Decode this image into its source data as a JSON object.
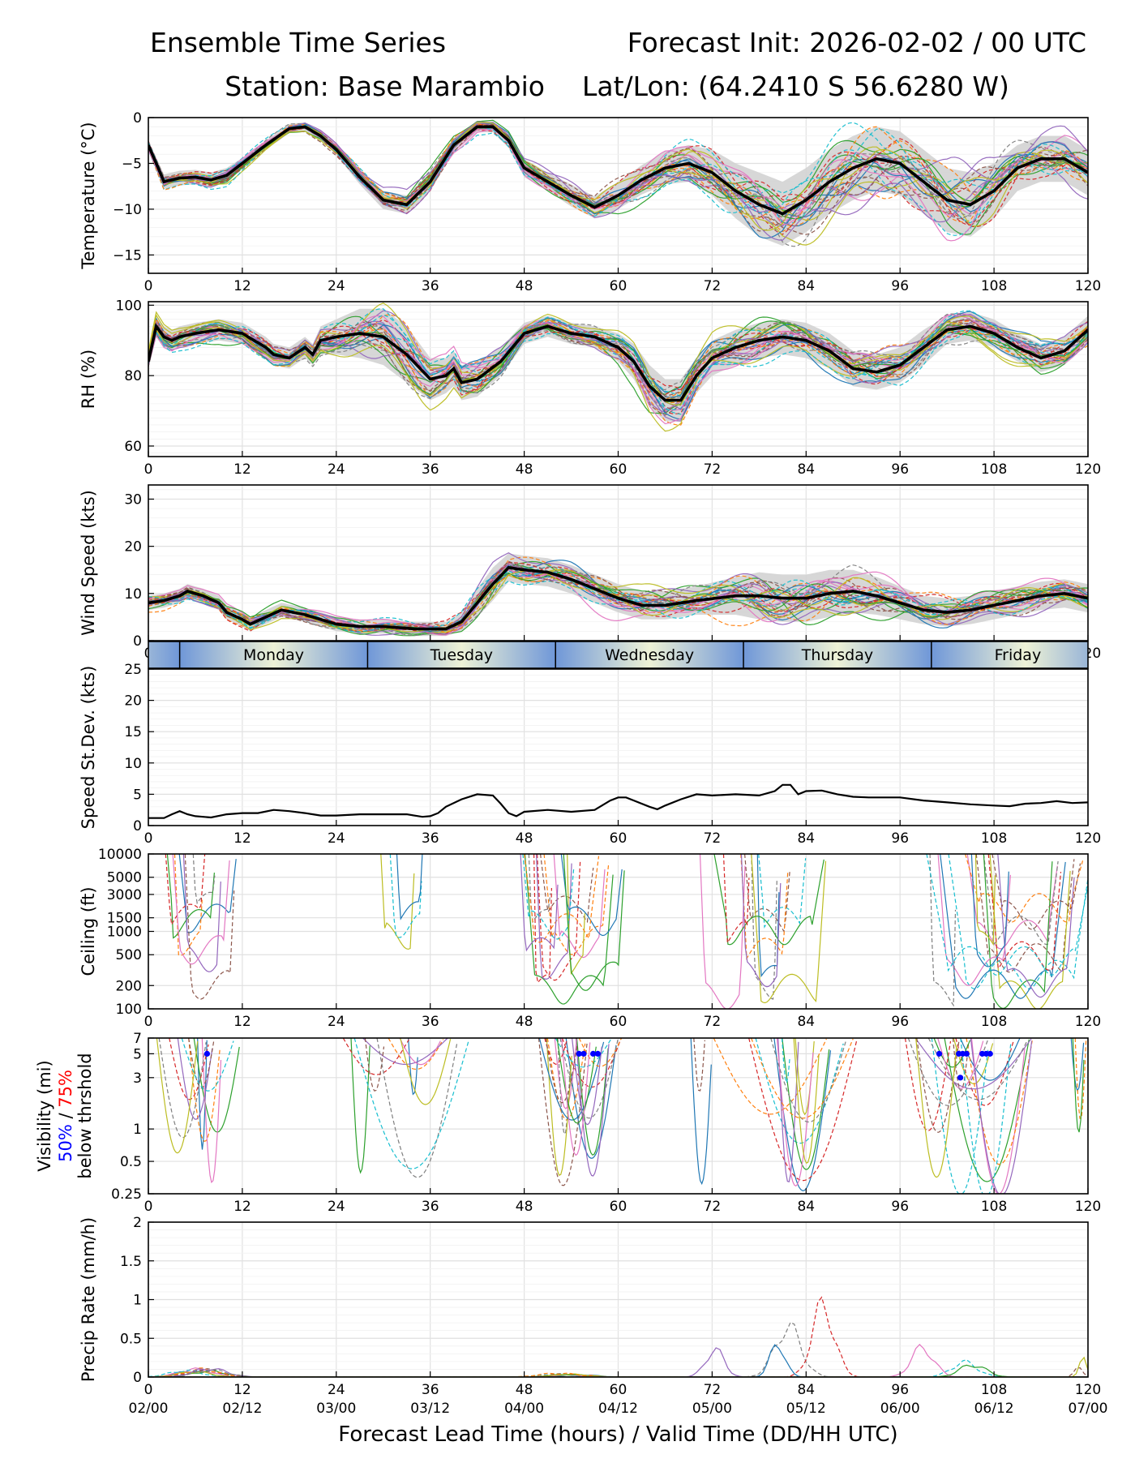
{
  "header": {
    "title_left": "Ensemble Time Series",
    "title_right": "Forecast Init: 2026-02-02 / 00 UTC",
    "station": "Station: Base Marambio",
    "latlon": "Lat/Lon: (64.2410 S 56.6280 W)"
  },
  "colors": {
    "members": [
      "#1f77b4",
      "#ff7f0e",
      "#2ca02c",
      "#d62728",
      "#9467bd",
      "#8c564b",
      "#e377c2",
      "#7f7f7f",
      "#bcbd22",
      "#17becf"
    ],
    "mean": "#000000",
    "spread": "#d0d0d0",
    "band_edge": "#6f97d8",
    "band_center": "#eef2d6",
    "vis50": "#0000ff",
    "vis75": "#ff0000"
  },
  "chart_data": [
    {
      "type": "line",
      "id": "temperature",
      "ylabel": "Temperature (°C)",
      "xlim": [
        0,
        120
      ],
      "ylim": [
        -17,
        0
      ],
      "yticks": [
        0,
        -5,
        -10,
        -15
      ],
      "xticks": [
        0,
        12,
        24,
        36,
        48,
        60,
        72,
        84,
        96,
        108,
        120
      ],
      "mean": {
        "x": [
          0,
          2,
          4,
          6,
          8,
          10,
          12,
          15,
          18,
          20,
          22,
          24,
          27,
          30,
          33,
          36,
          39,
          42,
          44,
          46,
          48,
          51,
          54,
          57,
          60,
          63,
          66,
          69,
          72,
          75,
          78,
          81,
          84,
          87,
          90,
          93,
          96,
          99,
          102,
          105,
          108,
          111,
          114,
          117,
          120
        ],
        "y": [
          -3,
          -7,
          -6.6,
          -6.5,
          -6.8,
          -6.3,
          -5,
          -3,
          -1.2,
          -1,
          -2,
          -3.5,
          -6.5,
          -9,
          -9.5,
          -7,
          -3,
          -1,
          -1,
          -2.5,
          -5.5,
          -7,
          -8.5,
          -9.8,
          -8.5,
          -6.8,
          -5.5,
          -5,
          -6,
          -8,
          -9.5,
          -10.5,
          -9,
          -7,
          -5.5,
          -4.5,
          -5,
          -7,
          -9,
          -9.5,
          -8,
          -5.5,
          -4.5,
          -4.5,
          -6
        ]
      },
      "spread_halfwidth": [
        0.5,
        0.8,
        0.8,
        0.8,
        0.8,
        0.8,
        0.6,
        0.5,
        0.5,
        0.5,
        0.5,
        0.6,
        0.8,
        1,
        1,
        1,
        0.8,
        0.6,
        0.6,
        0.8,
        1,
        1,
        1.2,
        1.2,
        1.5,
        1.6,
        1.8,
        2,
        2.5,
        3,
        3.5,
        3.5,
        3.5,
        3.5,
        3.5,
        3.5,
        3.5,
        3.5,
        3.5,
        3.5,
        3,
        2.5,
        2.5,
        2.5,
        2.5
      ],
      "members": 30
    },
    {
      "type": "line",
      "id": "rh",
      "ylabel": "RH (%)",
      "xlim": [
        0,
        120
      ],
      "ylim": [
        57,
        101
      ],
      "yticks": [
        100,
        80,
        60
      ],
      "xticks": [
        0,
        12,
        24,
        36,
        48,
        60,
        72,
        84,
        96,
        108,
        120
      ],
      "mean": {
        "x": [
          0,
          1,
          2,
          3,
          4,
          6,
          9,
          12,
          15,
          16,
          18,
          20,
          21,
          22,
          24,
          27,
          30,
          33,
          36,
          38,
          39,
          40,
          42,
          45,
          48,
          51,
          54,
          57,
          60,
          62,
          64,
          66,
          68,
          70,
          72,
          75,
          78,
          81,
          84,
          87,
          90,
          93,
          96,
          99,
          102,
          105,
          108,
          111,
          114,
          117,
          120
        ],
        "y": [
          84,
          94,
          91,
          90,
          91,
          92,
          93,
          92,
          88,
          86,
          85,
          88,
          86,
          90,
          91,
          92,
          91,
          86,
          79,
          80,
          82,
          78,
          79,
          84,
          92,
          94,
          92,
          91,
          88,
          84,
          77,
          73,
          73,
          80,
          85,
          88,
          90,
          91,
          90,
          87,
          82,
          81,
          83,
          88,
          93,
          94,
          92,
          88,
          85,
          87,
          93
        ]
      },
      "spread_halfwidth": [
        2,
        3,
        3,
        3,
        3,
        3,
        3,
        3,
        3,
        3,
        3,
        3,
        3,
        4,
        5,
        7,
        8,
        8,
        6,
        5,
        5,
        5,
        5,
        4,
        3,
        3,
        3,
        3,
        4,
        5,
        6,
        6,
        6,
        5,
        5,
        5,
        5,
        5,
        5,
        5,
        5,
        5,
        5,
        5,
        4,
        4,
        4,
        4,
        4,
        4,
        4
      ],
      "members": 30
    },
    {
      "type": "line",
      "id": "wind",
      "ylabel": "Wind Speed (kts)",
      "xlim": [
        0,
        120
      ],
      "ylim": [
        0,
        33
      ],
      "yticks": [
        0,
        10,
        20,
        30
      ],
      "xticks": [
        0,
        12,
        24,
        36,
        48,
        60,
        72,
        84,
        96,
        108,
        120
      ],
      "mean": {
        "x": [
          0,
          2,
          4,
          5,
          7,
          9,
          10,
          12,
          13,
          15,
          17,
          20,
          24,
          27,
          30,
          34,
          38,
          40,
          42,
          44,
          46,
          48,
          51,
          54,
          57,
          60,
          63,
          66,
          70,
          75,
          78,
          81,
          84,
          87,
          90,
          93,
          96,
          99,
          102,
          105,
          108,
          111,
          114,
          117,
          120
        ],
        "y": [
          8,
          8.5,
          9.5,
          10.5,
          9.5,
          8,
          6,
          4.5,
          3.5,
          5,
          6.5,
          5.5,
          3.5,
          3,
          3,
          2.5,
          2.5,
          4,
          8,
          12,
          15.5,
          15,
          14.5,
          13,
          11,
          9,
          7.5,
          7.5,
          8.5,
          9.5,
          9.5,
          9,
          9,
          10,
          10.5,
          9.5,
          8,
          6.5,
          6,
          6.5,
          7.5,
          8.5,
          9.5,
          10,
          9
        ]
      },
      "spread_halfwidth": [
        1.5,
        1.5,
        1.5,
        1.5,
        1.5,
        1.5,
        1.5,
        1.5,
        1.5,
        1.5,
        1.5,
        1.5,
        1.5,
        1.5,
        1.5,
        1.5,
        1.5,
        2,
        3,
        3.5,
        3,
        3,
        3,
        3,
        3,
        3,
        3,
        3,
        3,
        4,
        5,
        5,
        5,
        5,
        4.5,
        4,
        3.5,
        3,
        3,
        3,
        3,
        3,
        3,
        3,
        3
      ],
      "members": 30
    },
    {
      "type": "line",
      "id": "speed_sd",
      "ylabel": "Speed St.Dev. (kts)",
      "xlim": [
        0,
        120
      ],
      "ylim": [
        0,
        25
      ],
      "yticks": [
        0,
        5,
        10,
        15,
        20,
        25
      ],
      "xticks": [
        0,
        12,
        24,
        36,
        48,
        60,
        72,
        84,
        96,
        108,
        120
      ],
      "x": [
        0,
        2,
        3,
        4,
        5,
        6,
        8,
        10,
        12,
        14,
        16,
        18,
        20,
        22,
        24,
        27,
        30,
        33,
        35,
        36,
        37,
        38,
        40,
        42,
        44,
        45,
        46,
        47,
        48,
        51,
        54,
        57,
        59,
        60,
        61,
        62,
        64,
        65,
        66,
        68,
        70,
        72,
        75,
        78,
        80,
        81,
        82,
        83,
        84,
        86,
        88,
        90,
        92,
        94,
        96,
        99,
        102,
        105,
        108,
        110,
        112,
        114,
        116,
        118,
        120
      ],
      "y": [
        1.2,
        1.2,
        1.8,
        2.3,
        1.8,
        1.5,
        1.3,
        1.8,
        2,
        2,
        2.5,
        2.3,
        2,
        1.6,
        1.6,
        1.8,
        1.8,
        1.8,
        1.4,
        1.5,
        2,
        3,
        4.2,
        5,
        4.8,
        3.5,
        2,
        1.5,
        2.2,
        2.5,
        2.2,
        2.5,
        4,
        4.5,
        4.5,
        4,
        3,
        2.6,
        3.2,
        4.2,
        5,
        4.8,
        5,
        4.8,
        5.5,
        6.5,
        6.5,
        5,
        5.5,
        5.6,
        5,
        4.6,
        4.5,
        4.5,
        4.5,
        4,
        3.7,
        3.4,
        3.2,
        3.1,
        3.5,
        3.6,
        3.9,
        3.6,
        3.7
      ]
    },
    {
      "type": "line",
      "id": "ceiling",
      "ylabel": "Ceiling (ft)",
      "scale": "log",
      "xlim": [
        0,
        120
      ],
      "ylim": [
        100,
        10000
      ],
      "yticks": [
        10000,
        5000,
        3000,
        1500,
        1000,
        500,
        200,
        100
      ],
      "xticks": [
        0,
        12,
        24,
        36,
        48,
        60,
        72,
        84,
        96,
        108,
        120
      ],
      "members": 30
    },
    {
      "type": "line",
      "id": "visibility",
      "ylabel": "Visibility (mi)",
      "ylabel_50": "50%",
      "ylabel_sep": " / ",
      "ylabel_75": "75%",
      "ylabel_2": "below thrshold",
      "scale": "log",
      "xlim": [
        0,
        120
      ],
      "ylim": [
        0.25,
        7
      ],
      "yticks": [
        7,
        5,
        3,
        1,
        0.5,
        0.25
      ],
      "xticks": [
        0,
        12,
        24,
        36,
        48,
        60,
        72,
        84,
        96,
        108,
        120
      ],
      "markers_50": [
        {
          "x": 7.5,
          "y": 5
        },
        {
          "x": 55,
          "y": 5
        },
        {
          "x": 55.6,
          "y": 5
        },
        {
          "x": 56.8,
          "y": 5
        },
        {
          "x": 57.4,
          "y": 5
        },
        {
          "x": 101,
          "y": 5
        },
        {
          "x": 103.5,
          "y": 5
        },
        {
          "x": 104,
          "y": 5
        },
        {
          "x": 104.5,
          "y": 5
        },
        {
          "x": 103.7,
          "y": 3
        },
        {
          "x": 106.5,
          "y": 5
        },
        {
          "x": 107,
          "y": 5
        },
        {
          "x": 107.5,
          "y": 5
        }
      ],
      "members": 30
    },
    {
      "type": "line",
      "id": "precip",
      "ylabel": "Precip Rate (mm/h)",
      "xlim": [
        0,
        120
      ],
      "ylim": [
        0,
        2
      ],
      "yticks": [
        0.0,
        0.5,
        1.0,
        1.5,
        2.0
      ],
      "xticks": [
        0,
        12,
        24,
        36,
        48,
        60,
        72,
        84,
        96,
        108,
        120
      ],
      "xticklabels2": [
        "02/00",
        "02/12",
        "03/00",
        "03/12",
        "04/00",
        "04/12",
        "05/00",
        "05/12",
        "06/00",
        "06/12",
        "07/00"
      ],
      "xlabel": "Forecast Lead Time (hours) / Valid Time (DD/HH UTC)",
      "members": 30
    }
  ],
  "day_band": {
    "days": [
      {
        "label": "Monday",
        "start": 4,
        "end": 28
      },
      {
        "label": "Tuesday",
        "start": 28,
        "end": 52
      },
      {
        "label": "Wednesday",
        "start": 52,
        "end": 76
      },
      {
        "label": "Thursday",
        "start": 76,
        "end": 100
      },
      {
        "label": "Friday",
        "start": 100,
        "end": 124
      }
    ]
  }
}
